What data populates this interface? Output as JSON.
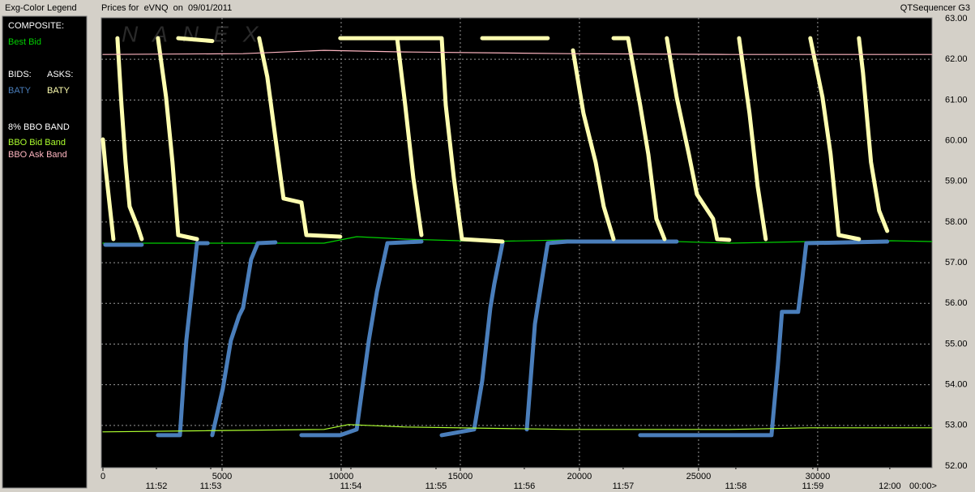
{
  "header": {
    "left": "Exg-Color Legend",
    "center": "Prices for  eVNQ  on  09/01/2011",
    "right": "QTSequencer G3"
  },
  "watermark": "NANEX",
  "legend": {
    "composite": "COMPOSITE:",
    "bids": "BIDS:",
    "asks": "ASKS:",
    "band": "8% BBO BAND"
  },
  "chart_data": {
    "type": "line",
    "xlim": [
      0,
      34800
    ],
    "ylim": [
      52,
      63
    ],
    "xticks": [
      0,
      5000,
      10000,
      15000,
      20000,
      25000,
      30000
    ],
    "yticks": [
      {
        "value": 52,
        "label": "52.00"
      },
      {
        "value": 53,
        "label": "53.00"
      },
      {
        "value": 54,
        "label": "54.00"
      },
      {
        "value": 55,
        "label": "55.00"
      },
      {
        "value": 56,
        "label": "56.00"
      },
      {
        "value": 57,
        "label": "57.00"
      },
      {
        "value": 58,
        "label": "58.00"
      },
      {
        "value": 59,
        "label": "59.00"
      },
      {
        "value": 60,
        "label": "60.00"
      },
      {
        "value": 61,
        "label": "61.00"
      },
      {
        "value": 62,
        "label": "62.00"
      },
      {
        "value": 63,
        "label": "63.00"
      }
    ],
    "time_ticks": [
      {
        "value": 2245,
        "label": "11:52"
      },
      {
        "value": 4524,
        "label": "11:53"
      },
      {
        "value": 10408,
        "label": "11:54"
      },
      {
        "value": 13980,
        "label": "11:55"
      },
      {
        "value": 17687,
        "label": "11:56"
      },
      {
        "value": 21837,
        "label": "11:57"
      },
      {
        "value": 26565,
        "label": "11:58"
      },
      {
        "value": 29796,
        "label": "11:59"
      },
      {
        "value": 33027,
        "label": "12:00"
      }
    ],
    "time_axis_end_label": "00:00>",
    "grid": true,
    "series": [
      {
        "name": "Best Bid",
        "color": "#00d000",
        "width": 1.2,
        "x": [
          0,
          9280,
          10650,
          12690,
          16090,
          19490,
          22890,
          26290,
          29690,
          33090,
          34790
        ],
        "values": [
          57.48,
          57.48,
          57.64,
          57.58,
          57.52,
          57.56,
          57.54,
          57.48,
          57.52,
          57.54,
          57.52
        ]
      },
      {
        "name": "BATY",
        "color": "#4a7ebb",
        "width": 5,
        "x": [
          100,
          1630,
          null,
          2310,
          3230,
          3500,
          3950,
          4400,
          null,
          4590,
          5030,
          5370,
          5710,
          5880,
          6220,
          6500,
          7240,
          null,
          8330,
          9960,
          10650,
          11160,
          11500,
          11940,
          13370,
          null,
          14220,
          15580,
          15920,
          16260,
          16430,
          16770,
          null,
          17790,
          18130,
          18400,
          18670,
          19490,
          24080,
          null,
          22550,
          28060,
          28330,
          28500,
          29180,
          29350,
          29520,
          32920
        ],
        "values": [
          57.44,
          57.44,
          null,
          52.76,
          52.76,
          55.09,
          57.48,
          57.48,
          null,
          52.76,
          53.9,
          55.09,
          55.69,
          55.89,
          57.08,
          57.48,
          57.5,
          null,
          52.76,
          52.76,
          52.9,
          55.09,
          56.29,
          57.48,
          57.52,
          null,
          52.76,
          52.9,
          54.1,
          55.89,
          56.49,
          57.48,
          null,
          52.9,
          55.49,
          56.49,
          57.48,
          57.52,
          57.52,
          null,
          52.76,
          52.76,
          54.49,
          55.79,
          55.79,
          56.59,
          57.48,
          57.52
        ]
      },
      {
        "name": "BATY",
        "color": "#ffffb0",
        "width": 5,
        "x": [
          0,
          100,
          440,
          null,
          610,
          780,
          950,
          1120,
          1460,
          1630,
          null,
          2310,
          2650,
          2920,
          3160,
          3950,
          null,
          3160,
          4590,
          null,
          6560,
          6900,
          7240,
          7580,
          8330,
          8540,
          9960,
          null,
          12350,
          12690,
          13030,
          13370,
          null,
          9960,
          14220,
          null,
          14220,
          14390,
          14730,
          15070,
          16770,
          null,
          15920,
          18670,
          null,
          19730,
          20170,
          20680,
          21020,
          21430,
          null,
          21430,
          22040,
          null,
          22040,
          22550,
          22890,
          23230,
          23570,
          null,
          23670,
          24080,
          24590,
          24930,
          25610,
          25780,
          26290,
          null,
          26700,
          27140,
          27480,
          27820,
          null,
          29690,
          30200,
          30540,
          30880,
          31730,
          null,
          31730,
          31900,
          32240,
          32580,
          32920
        ],
        "values": [
          60.03,
          59.4,
          57.58,
          null,
          62.52,
          60.87,
          59.47,
          58.38,
          57.88,
          57.58,
          null,
          62.52,
          61.07,
          59.47,
          57.68,
          57.58,
          null,
          62.52,
          62.45,
          null,
          62.52,
          61.57,
          60.07,
          58.58,
          58.48,
          57.68,
          57.64,
          null,
          62.52,
          60.87,
          59.08,
          57.68,
          null,
          62.52,
          62.52,
          null,
          62.52,
          60.87,
          59.08,
          57.58,
          57.52,
          null,
          62.52,
          62.52,
          null,
          62.22,
          60.67,
          59.47,
          58.38,
          57.58,
          null,
          62.52,
          62.52,
          null,
          62.52,
          60.87,
          59.67,
          58.08,
          57.58,
          null,
          62.52,
          61.07,
          59.67,
          58.68,
          58.08,
          57.58,
          57.56,
          null,
          62.52,
          60.67,
          58.88,
          57.58,
          null,
          62.52,
          61.07,
          59.67,
          57.68,
          57.58,
          null,
          62.52,
          61.67,
          59.47,
          58.28,
          57.78
        ]
      },
      {
        "name": "BBO Bid Band",
        "color": "#adff2f",
        "width": 1.2,
        "x": [
          0,
          9280,
          10300,
          12690,
          19490,
          26290,
          29690,
          34790
        ],
        "values": [
          52.84,
          52.9,
          53.02,
          52.96,
          52.9,
          52.9,
          52.94,
          52.94
        ]
      },
      {
        "name": "BBO Ask Band",
        "color": "#ffb6c1",
        "width": 1.2,
        "x": [
          0,
          5880,
          9280,
          12690,
          19490,
          26290,
          34790
        ],
        "values": [
          62.12,
          62.14,
          62.22,
          62.18,
          62.14,
          62.12,
          62.12
        ]
      }
    ]
  }
}
